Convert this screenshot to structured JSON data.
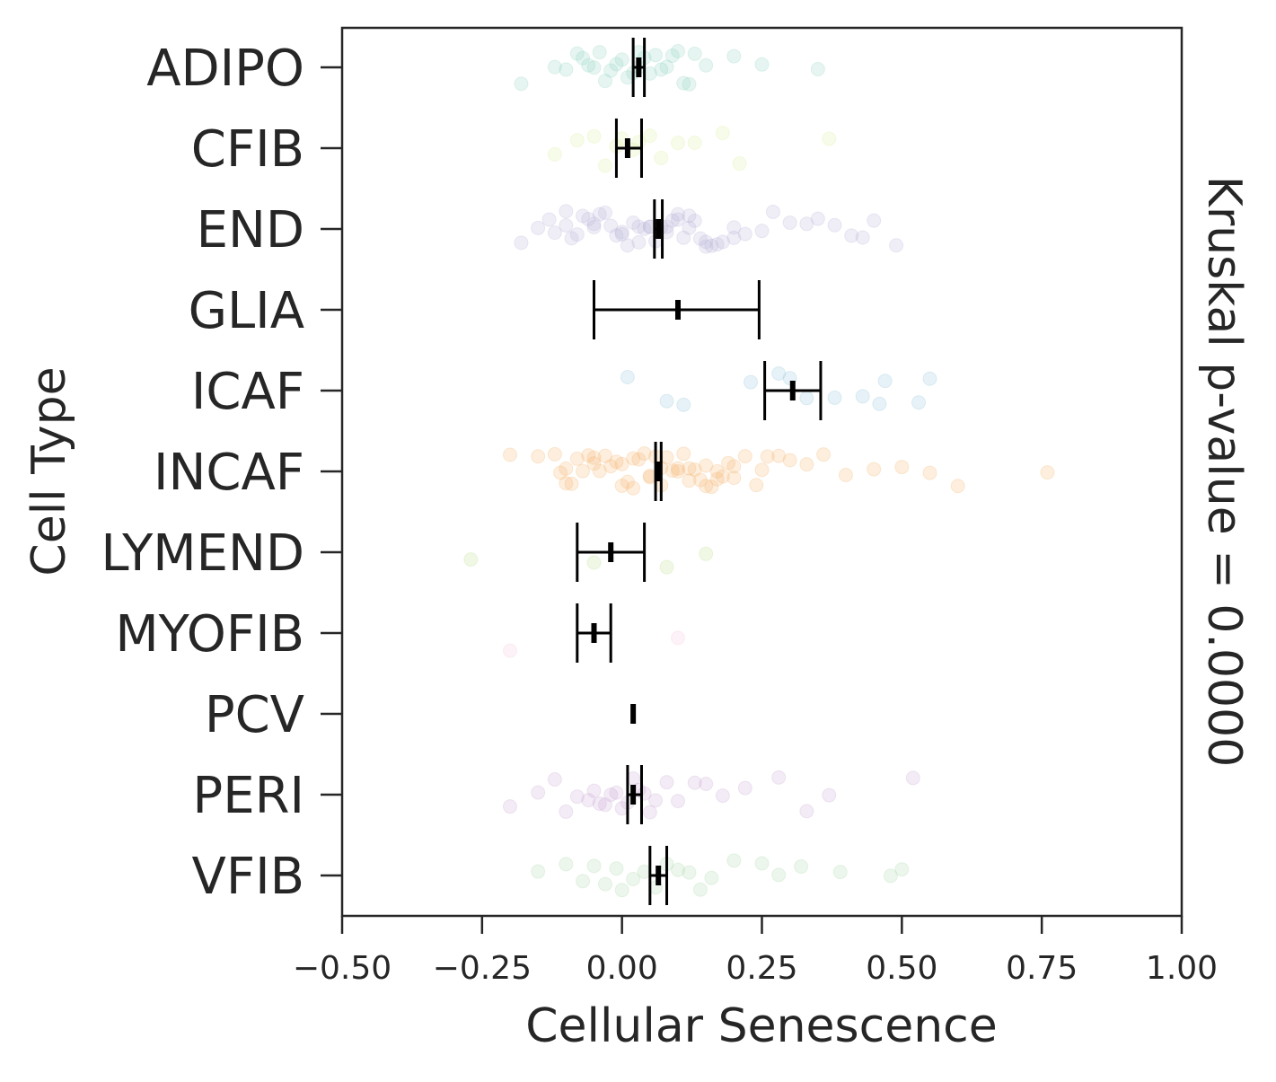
{
  "chart_data": {
    "type": "scatter",
    "subtype": "strip plot with mean and error bars",
    "xlabel": "Cellular Senescence",
    "ylabel": "Cell Type",
    "side_annotation": "Kruskal p-value = 0.0000",
    "xlim": [
      -0.5,
      1.0
    ],
    "xticks": [
      -0.5,
      -0.25,
      0.0,
      0.25,
      0.5,
      0.75,
      1.0
    ],
    "xtick_labels": [
      "−0.50",
      "−0.25",
      "0.00",
      "0.25",
      "0.50",
      "0.75",
      "1.00"
    ],
    "categories": [
      "ADIPO",
      "CFIB",
      "END",
      "GLIA",
      "ICAF",
      "INCAF",
      "LYMEND",
      "MYOFIB",
      "PCV",
      "PERI",
      "VFIB"
    ],
    "colors": {
      "ADIPO": "#8fd3c1",
      "CFIB": "#d9ef9b",
      "END": "#b8b0d6",
      "GLIA": "#f4a3a3",
      "ICAF": "#8fc3d9",
      "INCAF": "#f4b26b",
      "LYMEND": "#b9e08a",
      "MYOFIB": "#f5c6dc",
      "PCV": "#cccccc",
      "PERI": "#c9a6d3",
      "VFIB": "#a8d8a8",
      "error_bar": "#000000"
    },
    "series": [
      {
        "name": "ADIPO",
        "mean": 0.03,
        "ci": [
          0.02,
          0.04
        ],
        "points": [
          -0.12,
          -0.1,
          -0.08,
          -0.07,
          -0.06,
          -0.05,
          -0.04,
          -0.03,
          -0.02,
          -0.01,
          0.0,
          0.01,
          0.02,
          0.03,
          0.03,
          0.04,
          0.05,
          0.06,
          0.07,
          0.08,
          0.09,
          0.1,
          0.11,
          0.12,
          0.13,
          0.15,
          -0.18,
          0.2,
          0.25,
          0.35
        ]
      },
      {
        "name": "CFIB",
        "mean": 0.01,
        "ci": [
          -0.01,
          0.035
        ],
        "points": [
          -0.12,
          -0.08,
          -0.05,
          -0.03,
          -0.01,
          0.0,
          0.02,
          0.03,
          0.05,
          0.07,
          0.1,
          0.13,
          0.18,
          0.21,
          0.37
        ]
      },
      {
        "name": "END",
        "mean": 0.065,
        "ci": [
          0.058,
          0.072
        ],
        "points": [
          -0.18,
          -0.15,
          -0.13,
          -0.12,
          -0.1,
          -0.09,
          -0.08,
          -0.07,
          -0.06,
          -0.05,
          -0.04,
          -0.03,
          -0.02,
          -0.01,
          0.0,
          0.01,
          0.02,
          0.03,
          0.04,
          0.05,
          0.06,
          0.07,
          0.08,
          0.09,
          0.1,
          0.11,
          0.12,
          0.13,
          0.14,
          0.15,
          0.16,
          0.17,
          0.18,
          0.2,
          0.22,
          0.25,
          0.27,
          0.3,
          0.33,
          0.35,
          0.38,
          0.41,
          0.43,
          0.45,
          0.49,
          -0.1,
          -0.05,
          0.0,
          0.05,
          0.1,
          0.15,
          0.2,
          0.03,
          0.08,
          0.12
        ]
      },
      {
        "name": "GLIA",
        "mean": 0.1,
        "ci": [
          -0.05,
          0.245
        ],
        "points": []
      },
      {
        "name": "ICAF",
        "mean": 0.305,
        "ci": [
          0.255,
          0.355
        ],
        "points": [
          0.01,
          0.08,
          0.11,
          0.23,
          0.28,
          0.3,
          0.33,
          0.38,
          0.43,
          0.46,
          0.47,
          0.53,
          0.55
        ]
      },
      {
        "name": "INCAF",
        "mean": 0.065,
        "ci": [
          0.06,
          0.07
        ],
        "points": [
          -0.2,
          -0.15,
          -0.12,
          -0.11,
          -0.1,
          -0.09,
          -0.08,
          -0.07,
          -0.06,
          -0.05,
          -0.04,
          -0.03,
          -0.02,
          -0.01,
          0.0,
          0.01,
          0.02,
          0.03,
          0.04,
          0.05,
          0.06,
          0.07,
          0.08,
          0.09,
          0.1,
          0.11,
          0.12,
          0.13,
          0.14,
          0.15,
          0.16,
          0.17,
          0.18,
          0.19,
          0.2,
          0.22,
          0.24,
          0.26,
          0.28,
          0.3,
          0.33,
          0.36,
          0.4,
          0.45,
          0.5,
          0.55,
          0.6,
          0.76,
          -0.1,
          -0.05,
          0.0,
          0.05,
          0.1,
          0.15,
          0.2,
          0.25,
          0.02,
          0.07,
          0.12,
          0.17
        ]
      },
      {
        "name": "LYMEND",
        "mean": -0.02,
        "ci": [
          -0.08,
          0.04
        ],
        "points": [
          -0.27,
          -0.05,
          0.08,
          0.15
        ]
      },
      {
        "name": "MYOFIB",
        "mean": -0.05,
        "ci": [
          -0.08,
          -0.02
        ],
        "points": [
          -0.2,
          0.1
        ]
      },
      {
        "name": "PCV",
        "mean": 0.02,
        "ci": [
          0.02,
          0.02
        ],
        "points": []
      },
      {
        "name": "PERI",
        "mean": 0.02,
        "ci": [
          0.01,
          0.035
        ],
        "points": [
          -0.2,
          -0.15,
          -0.12,
          -0.1,
          -0.08,
          -0.06,
          -0.05,
          -0.04,
          -0.03,
          -0.02,
          -0.01,
          0.0,
          0.01,
          0.02,
          0.03,
          0.04,
          0.05,
          0.06,
          0.08,
          0.1,
          0.13,
          0.15,
          0.18,
          0.22,
          0.28,
          0.33,
          0.37,
          0.52
        ]
      },
      {
        "name": "VFIB",
        "mean": 0.065,
        "ci": [
          0.05,
          0.08
        ],
        "points": [
          -0.15,
          -0.1,
          -0.07,
          -0.05,
          -0.03,
          -0.01,
          0.0,
          0.02,
          0.04,
          0.06,
          0.08,
          0.1,
          0.12,
          0.14,
          0.16,
          0.2,
          0.25,
          0.28,
          0.32,
          0.39,
          0.48,
          0.5
        ]
      }
    ]
  }
}
